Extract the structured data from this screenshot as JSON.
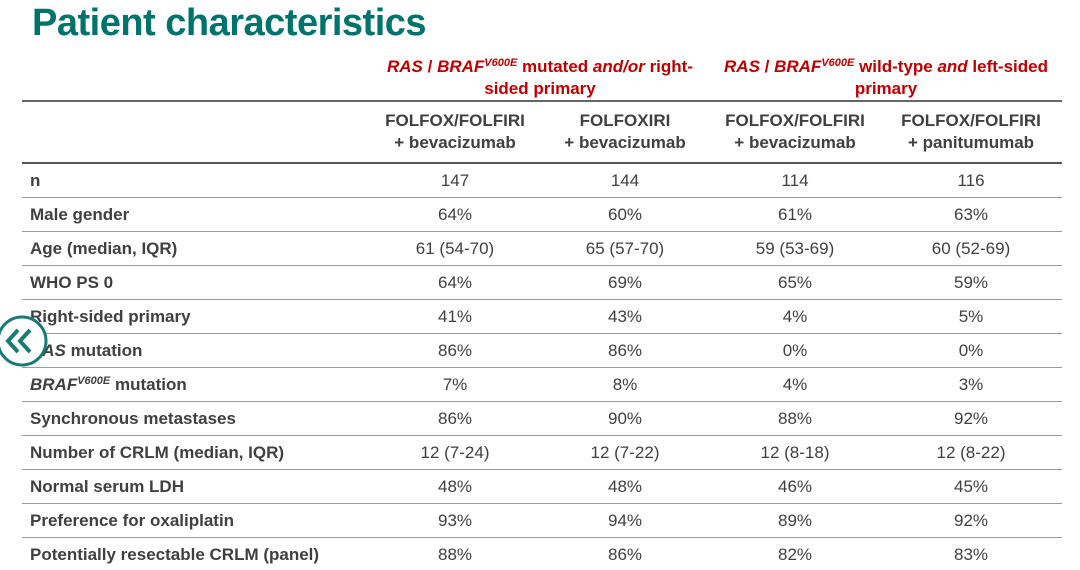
{
  "title": "Patient characteristics",
  "table": {
    "groups": [
      [
        {
          "text": "RAS",
          "style": "italic"
        },
        {
          "text": " / "
        },
        {
          "text": "BRAF",
          "style": "italic"
        },
        {
          "text": "V600E",
          "style": "italic sup"
        },
        {
          "text": " mutated "
        },
        {
          "text": "and/or",
          "style": "italic"
        },
        {
          "text": " right-sided primary"
        }
      ],
      [
        {
          "text": "RAS",
          "style": "italic"
        },
        {
          "text": " / "
        },
        {
          "text": "BRAF",
          "style": "italic"
        },
        {
          "text": "V600E",
          "style": "italic sup"
        },
        {
          "text": " wild-type "
        },
        {
          "text": "and",
          "style": "italic"
        },
        {
          "text": " left-sided primary"
        }
      ]
    ],
    "columns": [
      [
        "FOLFOX/FOLFIRI",
        "+ bevacizumab"
      ],
      [
        "FOLFOXIRI",
        "+ bevacizumab"
      ],
      [
        "FOLFOX/FOLFIRI",
        "+ bevacizumab"
      ],
      [
        "FOLFOX/FOLFIRI",
        "+ panitumumab"
      ]
    ],
    "rows": [
      {
        "label": [
          {
            "text": "n"
          }
        ],
        "values": [
          "147",
          "144",
          "114",
          "116"
        ]
      },
      {
        "label": [
          {
            "text": "Male gender"
          }
        ],
        "values": [
          "64%",
          "60%",
          "61%",
          "63%"
        ]
      },
      {
        "label": [
          {
            "text": "Age (median, IQR)"
          }
        ],
        "values": [
          "61 (54-70)",
          "65 (57-70)",
          "59 (53-69)",
          "60 (52-69)"
        ]
      },
      {
        "label": [
          {
            "text": "WHO PS 0"
          }
        ],
        "values": [
          "64%",
          "69%",
          "65%",
          "59%"
        ]
      },
      {
        "label": [
          {
            "text": "Right-sided primary"
          }
        ],
        "values": [
          "41%",
          "43%",
          "4%",
          "5%"
        ]
      },
      {
        "label": [
          {
            "text": "RAS",
            "style": "italic"
          },
          {
            "text": " mutation"
          }
        ],
        "values": [
          "86%",
          "86%",
          "0%",
          "0%"
        ]
      },
      {
        "label": [
          {
            "text": "BRAF",
            "style": "italic"
          },
          {
            "text": "V600E",
            "style": "italic sup"
          },
          {
            "text": " mutation"
          }
        ],
        "values": [
          "7%",
          "8%",
          "4%",
          "3%"
        ]
      },
      {
        "label": [
          {
            "text": "Synchronous metastases"
          }
        ],
        "values": [
          "86%",
          "90%",
          "88%",
          "92%"
        ]
      },
      {
        "label": [
          {
            "text": "Number of CRLM (median, IQR)"
          }
        ],
        "values": [
          "12 (7-24)",
          "12 (7-22)",
          "12 (8-18)",
          "12 (8-22)"
        ]
      },
      {
        "label": [
          {
            "text": "Normal serum LDH"
          }
        ],
        "values": [
          "48%",
          "48%",
          "46%",
          "45%"
        ]
      },
      {
        "label": [
          {
            "text": "Preference for oxaliplatin"
          }
        ],
        "values": [
          "93%",
          "94%",
          "89%",
          "92%"
        ]
      },
      {
        "label": [
          {
            "text": "Potentially resectable CRLM (panel)"
          }
        ],
        "values": [
          "88%",
          "86%",
          "82%",
          "83%"
        ]
      }
    ]
  }
}
